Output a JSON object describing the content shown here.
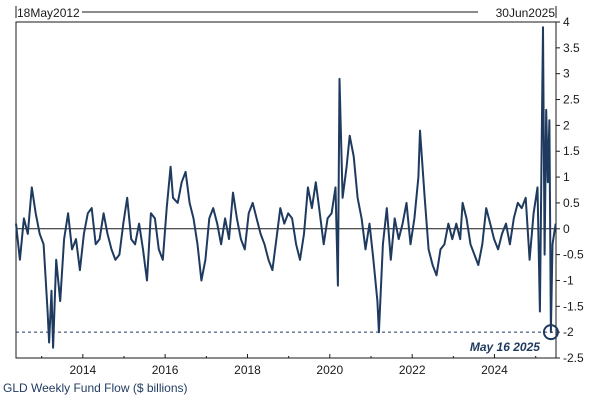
{
  "chart_data": {
    "type": "line",
    "title": "",
    "caption": "GLD Weekly Fund Flow ($ billions)",
    "start_date_label": "18May2012",
    "end_date_label": "30Jun2025",
    "xlabel": "",
    "ylabel": "",
    "x_range": [
      "2012-05-18",
      "2025-06-30"
    ],
    "ylim": [
      -2.5,
      4
    ],
    "y_ticks": [
      4,
      3.5,
      3,
      2.5,
      2,
      1.5,
      1,
      0.5,
      0,
      -0.5,
      -1,
      -1.5,
      -2,
      -2.5
    ],
    "x_ticks": [
      "2014",
      "2016",
      "2018",
      "2020",
      "2022",
      "2024"
    ],
    "reference_line": {
      "value": -2.0,
      "style": "dashed"
    },
    "highlight": {
      "date": "2025-05-16",
      "value": -2.0,
      "label": "May 16 2025",
      "color": "#1f3a5f"
    },
    "series": [
      {
        "color": "#1f3a5f",
        "points": [
          [
            "2012-05-18",
            0.1
          ],
          [
            "2012-06-22",
            -0.6
          ],
          [
            "2012-07-27",
            0.2
          ],
          [
            "2012-08-31",
            -0.1
          ],
          [
            "2012-10-05",
            0.8
          ],
          [
            "2012-11-09",
            0.3
          ],
          [
            "2012-12-14",
            -0.1
          ],
          [
            "2013-01-18",
            -0.3
          ],
          [
            "2013-02-22",
            -1.6
          ],
          [
            "2013-03-08",
            -2.2
          ],
          [
            "2013-03-29",
            -1.2
          ],
          [
            "2013-04-12",
            -2.3
          ],
          [
            "2013-05-10",
            -0.6
          ],
          [
            "2013-06-14",
            -1.4
          ],
          [
            "2013-07-19",
            -0.2
          ],
          [
            "2013-08-23",
            0.3
          ],
          [
            "2013-09-27",
            -0.4
          ],
          [
            "2013-11-01",
            -0.2
          ],
          [
            "2013-12-06",
            -0.8
          ],
          [
            "2014-01-10",
            -0.1
          ],
          [
            "2014-02-14",
            0.3
          ],
          [
            "2014-03-21",
            0.4
          ],
          [
            "2014-04-25",
            -0.3
          ],
          [
            "2014-05-30",
            -0.2
          ],
          [
            "2014-07-04",
            0.3
          ],
          [
            "2014-08-08",
            -0.1
          ],
          [
            "2014-09-12",
            -0.4
          ],
          [
            "2014-10-17",
            -0.6
          ],
          [
            "2014-11-21",
            -0.5
          ],
          [
            "2014-12-26",
            0.1
          ],
          [
            "2015-01-30",
            0.6
          ],
          [
            "2015-03-06",
            -0.2
          ],
          [
            "2015-04-10",
            -0.3
          ],
          [
            "2015-05-15",
            0.1
          ],
          [
            "2015-06-19",
            -0.4
          ],
          [
            "2015-07-24",
            -1.0
          ],
          [
            "2015-08-28",
            0.3
          ],
          [
            "2015-10-02",
            0.2
          ],
          [
            "2015-11-06",
            -0.4
          ],
          [
            "2015-12-11",
            -0.6
          ],
          [
            "2016-01-15",
            0.4
          ],
          [
            "2016-02-19",
            1.2
          ],
          [
            "2016-03-11",
            0.6
          ],
          [
            "2016-04-22",
            0.5
          ],
          [
            "2016-05-27",
            0.9
          ],
          [
            "2016-07-01",
            1.1
          ],
          [
            "2016-08-05",
            0.5
          ],
          [
            "2016-09-09",
            0.2
          ],
          [
            "2016-10-14",
            -0.3
          ],
          [
            "2016-11-18",
            -1.0
          ],
          [
            "2016-12-23",
            -0.6
          ],
          [
            "2017-01-27",
            0.2
          ],
          [
            "2017-03-03",
            0.4
          ],
          [
            "2017-04-07",
            0.1
          ],
          [
            "2017-05-12",
            -0.3
          ],
          [
            "2017-06-16",
            0.2
          ],
          [
            "2017-07-21",
            -0.2
          ],
          [
            "2017-08-25",
            0.7
          ],
          [
            "2017-09-29",
            0.2
          ],
          [
            "2017-11-03",
            -0.2
          ],
          [
            "2017-12-08",
            -0.4
          ],
          [
            "2018-01-12",
            0.3
          ],
          [
            "2018-02-16",
            0.5
          ],
          [
            "2018-03-23",
            0.2
          ],
          [
            "2018-04-27",
            -0.1
          ],
          [
            "2018-06-01",
            -0.3
          ],
          [
            "2018-07-06",
            -0.6
          ],
          [
            "2018-08-10",
            -0.8
          ],
          [
            "2018-09-14",
            -0.2
          ],
          [
            "2018-10-19",
            0.4
          ],
          [
            "2018-11-23",
            0.1
          ],
          [
            "2018-12-28",
            0.3
          ],
          [
            "2019-02-01",
            0.2
          ],
          [
            "2019-03-08",
            -0.3
          ],
          [
            "2019-04-12",
            -0.6
          ],
          [
            "2019-05-17",
            -0.1
          ],
          [
            "2019-06-21",
            0.8
          ],
          [
            "2019-07-26",
            0.4
          ],
          [
            "2019-08-30",
            0.9
          ],
          [
            "2019-10-04",
            0.3
          ],
          [
            "2019-11-08",
            -0.3
          ],
          [
            "2019-12-13",
            0.2
          ],
          [
            "2020-01-17",
            0.3
          ],
          [
            "2020-02-21",
            0.8
          ],
          [
            "2020-03-13",
            -1.1
          ],
          [
            "2020-03-27",
            2.9
          ],
          [
            "2020-04-24",
            0.6
          ],
          [
            "2020-05-29",
            1.2
          ],
          [
            "2020-06-26",
            1.8
          ],
          [
            "2020-07-31",
            1.4
          ],
          [
            "2020-09-04",
            0.6
          ],
          [
            "2020-10-09",
            0.2
          ],
          [
            "2020-11-13",
            -0.4
          ],
          [
            "2020-12-18",
            0.1
          ],
          [
            "2021-01-22",
            -0.6
          ],
          [
            "2021-02-26",
            -1.4
          ],
          [
            "2021-03-12",
            -2.0
          ],
          [
            "2021-04-16",
            -0.3
          ],
          [
            "2021-05-21",
            0.4
          ],
          [
            "2021-06-25",
            -0.6
          ],
          [
            "2021-07-30",
            0.2
          ],
          [
            "2021-09-03",
            -0.2
          ],
          [
            "2021-10-08",
            0.1
          ],
          [
            "2021-11-12",
            0.5
          ],
          [
            "2021-12-17",
            -0.3
          ],
          [
            "2022-01-21",
            0.2
          ],
          [
            "2022-02-25",
            1.0
          ],
          [
            "2022-03-11",
            1.9
          ],
          [
            "2022-04-22",
            0.6
          ],
          [
            "2022-05-27",
            -0.4
          ],
          [
            "2022-07-01",
            -0.7
          ],
          [
            "2022-08-05",
            -0.9
          ],
          [
            "2022-09-09",
            -0.4
          ],
          [
            "2022-10-14",
            -0.3
          ],
          [
            "2022-11-18",
            0.1
          ],
          [
            "2022-12-23",
            -0.2
          ],
          [
            "2023-01-27",
            0.1
          ],
          [
            "2023-03-03",
            -0.2
          ],
          [
            "2023-03-24",
            0.5
          ],
          [
            "2023-04-28",
            0.2
          ],
          [
            "2023-06-02",
            -0.3
          ],
          [
            "2023-07-07",
            -0.5
          ],
          [
            "2023-08-11",
            -0.7
          ],
          [
            "2023-09-15",
            -0.3
          ],
          [
            "2023-10-20",
            0.4
          ],
          [
            "2023-11-24",
            0.1
          ],
          [
            "2023-12-29",
            -0.2
          ],
          [
            "2024-02-02",
            -0.4
          ],
          [
            "2024-03-08",
            -0.1
          ],
          [
            "2024-04-12",
            0.1
          ],
          [
            "2024-05-17",
            -0.3
          ],
          [
            "2024-06-21",
            0.2
          ],
          [
            "2024-07-26",
            0.5
          ],
          [
            "2024-08-30",
            0.4
          ],
          [
            "2024-10-04",
            0.6
          ],
          [
            "2024-11-08",
            -0.6
          ],
          [
            "2024-12-13",
            0.3
          ],
          [
            "2025-01-17",
            0.8
          ],
          [
            "2025-02-07",
            -1.6
          ],
          [
            "2025-02-21",
            1.3
          ],
          [
            "2025-03-07",
            3.9
          ],
          [
            "2025-03-21",
            -0.5
          ],
          [
            "2025-04-04",
            2.3
          ],
          [
            "2025-04-18",
            0.9
          ],
          [
            "2025-05-02",
            2.1
          ],
          [
            "2025-05-16",
            -2.0
          ],
          [
            "2025-05-30",
            -0.3
          ],
          [
            "2025-06-13",
            -0.1
          ],
          [
            "2025-06-27",
            0.1
          ]
        ]
      }
    ]
  }
}
